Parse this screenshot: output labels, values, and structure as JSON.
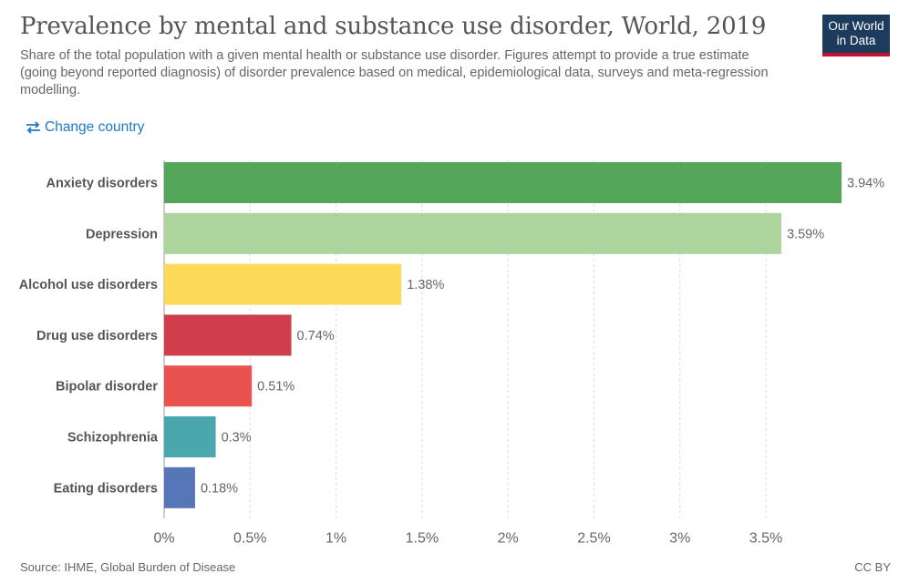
{
  "header": {
    "title": "Prevalence by mental and substance use disorder, World, 2019",
    "subtitle": "Share of the total population with a given mental health or substance use disorder. Figures attempt to provide a true estimate (going beyond reported diagnosis) of disorder prevalence based on medical, epidemiological data, surveys and meta-regression modelling.",
    "logo_line1": "Our World",
    "logo_line2": "in Data",
    "logo_color": "#1d3b5c",
    "logo_accent": "#c8102e"
  },
  "controls": {
    "change_country_label": "Change country",
    "change_country_icon": "swap-arrows-icon"
  },
  "footer": {
    "source": "Source: IHME, Global Burden of Disease",
    "license": "CC BY"
  },
  "chart_data": {
    "type": "bar",
    "orientation": "horizontal",
    "categories": [
      "Anxiety disorders",
      "Depression",
      "Alcohol use disorders",
      "Drug use disorders",
      "Bipolar disorder",
      "Schizophrenia",
      "Eating disorders"
    ],
    "values": [
      3.94,
      3.59,
      1.38,
      0.74,
      0.51,
      0.3,
      0.18
    ],
    "value_labels": [
      "3.94%",
      "3.59%",
      "1.38%",
      "0.74%",
      "0.51%",
      "0.3%",
      "0.18%"
    ],
    "colors": [
      "#54a65a",
      "#aed49e",
      "#fdd95a",
      "#cf3e4a",
      "#e8534f",
      "#4aa7ad",
      "#5776b8"
    ],
    "xlim": [
      0,
      3.94
    ],
    "x_ticks": [
      0,
      0.5,
      1,
      1.5,
      2,
      2.5,
      3,
      3.5
    ],
    "x_tick_labels": [
      "0%",
      "0.5%",
      "1%",
      "1.5%",
      "2%",
      "2.5%",
      "3%",
      "3.5%"
    ],
    "grid": true,
    "grid_style": "dashed vertical",
    "legend": "none"
  }
}
